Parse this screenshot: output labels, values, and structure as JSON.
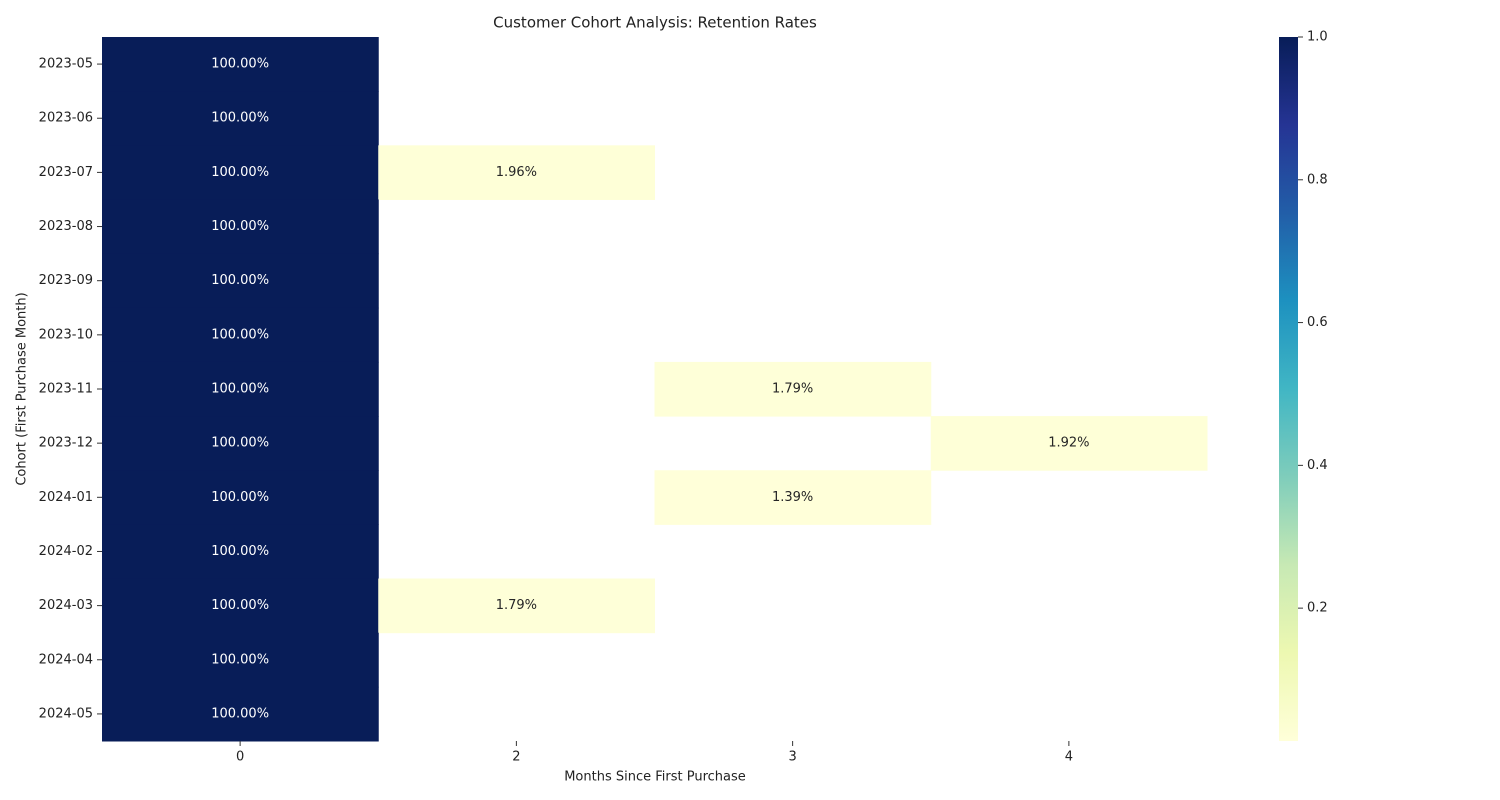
{
  "chart_data": {
    "type": "heatmap",
    "title": "Customer Cohort Analysis: Retention Rates",
    "xlabel": "Months Since First Purchase",
    "ylabel": "Cohort (First Purchase Month)",
    "x_categories": [
      "0",
      "2",
      "3",
      "4"
    ],
    "y_categories": [
      "2023-05",
      "2023-06",
      "2023-07",
      "2023-08",
      "2023-09",
      "2023-10",
      "2023-11",
      "2023-12",
      "2024-01",
      "2024-02",
      "2024-03",
      "2024-04",
      "2024-05"
    ],
    "values": [
      [
        1,
        null,
        null,
        null
      ],
      [
        1,
        null,
        null,
        null
      ],
      [
        1,
        0.0196,
        null,
        null
      ],
      [
        1,
        null,
        null,
        null
      ],
      [
        1,
        null,
        null,
        null
      ],
      [
        1,
        null,
        null,
        null
      ],
      [
        1,
        null,
        0.0179,
        null
      ],
      [
        1,
        null,
        null,
        0.0192
      ],
      [
        1,
        null,
        0.0139,
        null
      ],
      [
        1,
        null,
        null,
        null
      ],
      [
        1,
        0.0179,
        null,
        null
      ],
      [
        1,
        null,
        null,
        null
      ],
      [
        1,
        null,
        null,
        null
      ]
    ],
    "value_labels": [
      [
        "100.00%",
        null,
        null,
        null
      ],
      [
        "100.00%",
        null,
        null,
        null
      ],
      [
        "100.00%",
        "1.96%",
        null,
        null
      ],
      [
        "100.00%",
        null,
        null,
        null
      ],
      [
        "100.00%",
        null,
        null,
        null
      ],
      [
        "100.00%",
        null,
        null,
        null
      ],
      [
        "100.00%",
        null,
        "1.79%",
        null
      ],
      [
        "100.00%",
        null,
        null,
        "1.92%"
      ],
      [
        "100.00%",
        null,
        "1.39%",
        null
      ],
      [
        "100.00%",
        null,
        null,
        null
      ],
      [
        "100.00%",
        "1.79%",
        null,
        null
      ],
      [
        "100.00%",
        null,
        null,
        null
      ],
      [
        "100.00%",
        null,
        null,
        null
      ]
    ],
    "clim": [
      0.0139,
      1
    ],
    "cticks": [
      0.2,
      0.4,
      0.6,
      0.8,
      {
        "value": 1,
        "label": "1.0"
      }
    ],
    "colormap": [
      "#ffffd9",
      "#edf8b1",
      "#c7e9b4",
      "#7fcdbb",
      "#41b6c4",
      "#1d91c0",
      "#225ea8",
      "#253494",
      "#081d58"
    ]
  }
}
